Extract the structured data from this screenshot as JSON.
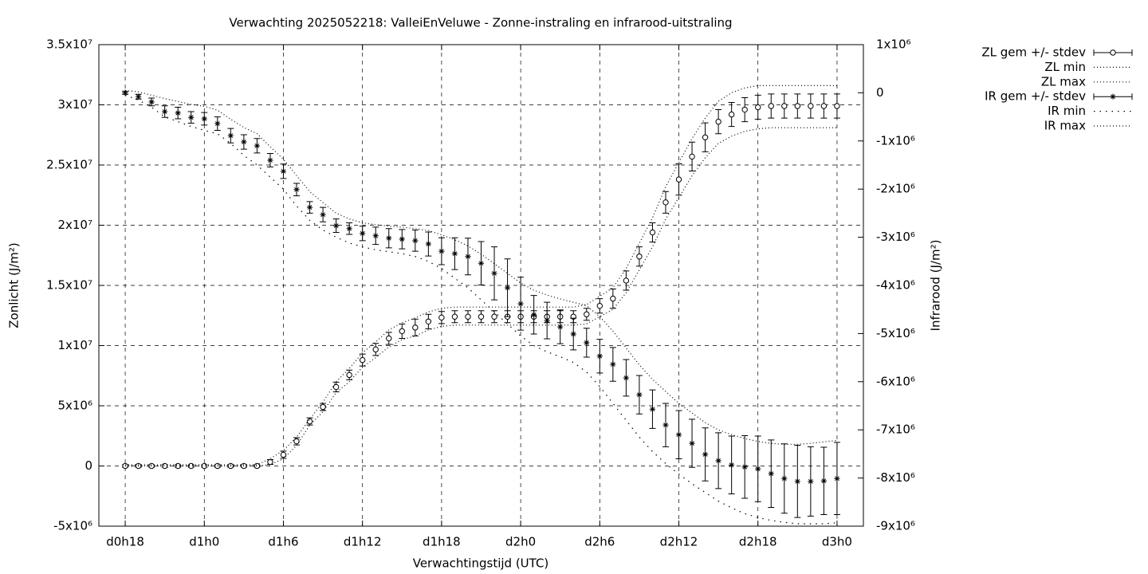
{
  "chart_data": {
    "type": "line",
    "title": "Verwachting 2025052218: ValleiEnVeluwe - Zonne-instraling en infrarood-uitstraling",
    "xlabel": "Verwachtingstijd (UTC)",
    "ylabel": "Zonlicht (J/m²)",
    "y2label": "Infrarood (J/m²)",
    "grid": true,
    "legend": "outside-right",
    "x": [
      18,
      19,
      20,
      21,
      22,
      23,
      24,
      25,
      26,
      27,
      28,
      29,
      30,
      31,
      32,
      33,
      34,
      35,
      36,
      37,
      38,
      39,
      40,
      41,
      42,
      43,
      44,
      45,
      46,
      47,
      48,
      49,
      50,
      51,
      52,
      53,
      54,
      55,
      56,
      57,
      58,
      59,
      60,
      61,
      62,
      63,
      64,
      65,
      66,
      67,
      68,
      69,
      70,
      71,
      72
    ],
    "xlim": [
      16,
      74
    ],
    "xticks": [
      {
        "value": 18,
        "label": "d0h18"
      },
      {
        "value": 24,
        "label": "d1h0"
      },
      {
        "value": 30,
        "label": "d1h6"
      },
      {
        "value": 36,
        "label": "d1h12"
      },
      {
        "value": 42,
        "label": "d1h18"
      },
      {
        "value": 48,
        "label": "d2h0"
      },
      {
        "value": 54,
        "label": "d2h6"
      },
      {
        "value": 60,
        "label": "d2h12"
      },
      {
        "value": 66,
        "label": "d2h18"
      },
      {
        "value": 72,
        "label": "d3h0"
      }
    ],
    "ylim": [
      -5000000.0,
      35000000.0
    ],
    "yticks": [
      {
        "value": -5000000.0,
        "label": "-5x10⁶"
      },
      0,
      {
        "value": 5000000.0,
        "label": "5x10⁶"
      },
      {
        "value": 10000000.0,
        "label": "1x10⁷"
      },
      {
        "value": 15000000.0,
        "label": "1.5x10⁷"
      },
      {
        "value": 20000000.0,
        "label": "2x10⁷"
      },
      {
        "value": 25000000.0,
        "label": "2.5x10⁷"
      },
      {
        "value": 30000000.0,
        "label": "3x10⁷"
      },
      {
        "value": 35000000.0,
        "label": "3.5x10⁷"
      }
    ],
    "y2lim": [
      -9000000.0,
      1000000.0
    ],
    "y2ticks": [
      {
        "value": -9000000.0,
        "label": "-9x10⁶"
      },
      {
        "value": -8000000.0,
        "label": "-8x10⁶"
      },
      {
        "value": -7000000.0,
        "label": "-7x10⁶"
      },
      {
        "value": -6000000.0,
        "label": "-6x10⁶"
      },
      {
        "value": -5000000.0,
        "label": "-5x10⁶"
      },
      {
        "value": -4000000.0,
        "label": "-4x10⁶"
      },
      {
        "value": -3000000.0,
        "label": "-3x10⁶"
      },
      {
        "value": -2000000.0,
        "label": "-2x10⁶"
      },
      {
        "value": -1000000.0,
        "label": "-1x10⁶"
      },
      0,
      {
        "value": 1000000.0,
        "label": "1x10⁶"
      }
    ],
    "series": [
      {
        "name": "ZL gem +/- stdev",
        "color": "#000000",
        "axis": "y",
        "marker": "circle",
        "values": [
          0,
          0,
          0,
          0,
          0,
          0,
          0,
          0,
          0,
          0,
          0,
          330000.0,
          930000.0,
          2050000.0,
          3700000.0,
          4900000.0,
          6560000.0,
          7560000.0,
          8800000.0,
          9680000.0,
          10600000.0,
          11200000.0,
          11500000.0,
          12000000.0,
          12330000.0,
          12400000.0,
          12400000.0,
          12400000.0,
          12400000.0,
          12400000.0,
          12400000.0,
          12400000.0,
          12400000.0,
          12400000.0,
          12400000.0,
          12600000.0,
          13300000.0,
          13900000.0,
          15400000.0,
          17400000.0,
          19400000.0,
          21900000.0,
          23800000.0,
          25700000.0,
          27300000.0,
          28600000.0,
          29200000.0,
          29600000.0,
          29800000.0,
          29900000.0,
          29900000.0,
          29900000.0,
          29900000.0,
          29900000.0,
          29900000.0
        ],
        "errors": [
          100000.0,
          100000.0,
          100000.0,
          100000.0,
          100000.0,
          100000.0,
          100000.0,
          100000.0,
          100000.0,
          100000.0,
          100000.0,
          200000.0,
          300000.0,
          300000.0,
          300000.0,
          300000.0,
          400000.0,
          400000.0,
          500000.0,
          500000.0,
          500000.0,
          600000.0,
          700000.0,
          600000.0,
          500000.0,
          500000.0,
          500000.0,
          500000.0,
          500000.0,
          500000.0,
          500000.0,
          500000.0,
          500000.0,
          500000.0,
          500000.0,
          500000.0,
          600000.0,
          800000.0,
          800000.0,
          800000.0,
          800000.0,
          900000.0,
          1300000.0,
          1200000.0,
          1200000.0,
          1000000.0,
          1000000.0,
          1000000.0,
          1000000.0,
          1000000.0,
          1000000.0,
          1000000.0,
          1000000.0,
          1000000.0,
          1000000.0
        ]
      },
      {
        "name": "ZL min",
        "color": "#000000",
        "axis": "y",
        "line_style": "dotted",
        "values": [
          0,
          0,
          0,
          0,
          0,
          0,
          0,
          0,
          0,
          0,
          0,
          100000.0,
          600000.0,
          1700000.0,
          3400000.0,
          4500000.0,
          6100000.0,
          7000000.0,
          8200000.0,
          9000000.0,
          9900000.0,
          10500000.0,
          10800000.0,
          11300000.0,
          11600000.0,
          11700000.0,
          11700000.0,
          11700000.0,
          11700000.0,
          11700000.0,
          11700000.0,
          11700000.0,
          11700000.0,
          11700000.0,
          11700000.0,
          11800000.0,
          12400000.0,
          13000000.0,
          14400000.0,
          16300000.0,
          18200000.0,
          20500000.0,
          22300000.0,
          24100000.0,
          25600000.0,
          26800000.0,
          27400000.0,
          27800000.0,
          28000000.0,
          28100000.0,
          28100000.0,
          28100000.0,
          28100000.0,
          28100000.0,
          28100000.0
        ]
      },
      {
        "name": "ZL max",
        "color": "#000000",
        "axis": "y",
        "line_style": "dotted",
        "values": [
          100000.0,
          100000.0,
          100000.0,
          100000.0,
          100000.0,
          100000.0,
          100000.0,
          100000.0,
          100000.0,
          100000.0,
          100000.0,
          600000.0,
          1300000.0,
          2400000.0,
          3900000.0,
          5300000.0,
          7000000.0,
          8100000.0,
          9400000.0,
          10300000.0,
          11300000.0,
          11900000.0,
          12300000.0,
          12800000.0,
          13100000.0,
          13200000.0,
          13200000.0,
          13200000.0,
          13200000.0,
          13200000.0,
          13200000.0,
          13200000.0,
          13200000.0,
          13200000.0,
          13200000.0,
          13400000.0,
          14100000.0,
          14800000.0,
          16400000.0,
          18500000.0,
          20600000.0,
          23200000.0,
          25200000.0,
          27200000.0,
          28900000.0,
          30300000.0,
          31000000.0,
          31400000.0,
          31600000.0,
          31600000.0,
          31600000.0,
          31600000.0,
          31600000.0,
          31600000.0,
          31600000.0
        ]
      },
      {
        "name": "IR gem +/- stdev",
        "color": "#000000",
        "axis": "y2",
        "marker": "star",
        "values": [
          0,
          -80000.0,
          -190000.0,
          -390000.0,
          -420000.0,
          -510000.0,
          -540000.0,
          -640000.0,
          -890000.0,
          -1020000.0,
          -1100000.0,
          -1400000.0,
          -1630000.0,
          -2010000.0,
          -2380000.0,
          -2530000.0,
          -2760000.0,
          -2820000.0,
          -2920000.0,
          -2970000.0,
          -3020000.0,
          -3040000.0,
          -3070000.0,
          -3140000.0,
          -3290000.0,
          -3340000.0,
          -3400000.0,
          -3540000.0,
          -3750000.0,
          -4050000.0,
          -4380000.0,
          -4610000.0,
          -4730000.0,
          -4860000.0,
          -5010000.0,
          -5190000.0,
          -5470000.0,
          -5640000.0,
          -5920000.0,
          -6270000.0,
          -6570000.0,
          -6900000.0,
          -7100000.0,
          -7280000.0,
          -7510000.0,
          -7640000.0,
          -7730000.0,
          -7770000.0,
          -7810000.0,
          -7910000.0,
          -8010000.0,
          -8070000.0,
          -8070000.0,
          -8060000.0,
          -8010000.0
        ],
        "errors": [
          30000.0,
          50000.0,
          80000.0,
          120000.0,
          120000.0,
          120000.0,
          130000.0,
          140000.0,
          150000.0,
          150000.0,
          150000.0,
          140000.0,
          150000.0,
          130000.0,
          120000.0,
          150000.0,
          140000.0,
          120000.0,
          150000.0,
          180000.0,
          200000.0,
          200000.0,
          220000.0,
          250000.0,
          280000.0,
          330000.0,
          380000.0,
          450000.0,
          550000.0,
          600000.0,
          550000.0,
          400000.0,
          380000.0,
          350000.0,
          330000.0,
          300000.0,
          350000.0,
          350000.0,
          380000.0,
          400000.0,
          400000.0,
          450000.0,
          500000.0,
          500000.0,
          550000.0,
          580000.0,
          600000.0,
          650000.0,
          680000.0,
          700000.0,
          720000.0,
          750000.0,
          720000.0,
          700000.0,
          750000.0
        ]
      },
      {
        "name": "IR min",
        "color": "#000000",
        "axis": "y2",
        "line_style": "dotted-wide",
        "values": [
          -50000.0,
          -150000.0,
          -300000.0,
          -500000.0,
          -600000.0,
          -700000.0,
          -780000.0,
          -850000.0,
          -1050000.0,
          -1300000.0,
          -1500000.0,
          -1750000.0,
          -2000000.0,
          -2350000.0,
          -2650000.0,
          -2850000.0,
          -3000000.0,
          -3120000.0,
          -3200000.0,
          -3260000.0,
          -3300000.0,
          -3340000.0,
          -3400000.0,
          -3500000.0,
          -3650000.0,
          -3850000.0,
          -4050000.0,
          -4300000.0,
          -4550000.0,
          -4800000.0,
          -5050000.0,
          -5250000.0,
          -5380000.0,
          -5480000.0,
          -5600000.0,
          -5800000.0,
          -6100000.0,
          -6450000.0,
          -6800000.0,
          -7150000.0,
          -7450000.0,
          -7700000.0,
          -7920000.0,
          -8120000.0,
          -8300000.0,
          -8480000.0,
          -8620000.0,
          -8740000.0,
          -8820000.0,
          -8880000.0,
          -8920000.0,
          -8950000.0,
          -8950000.0,
          -8950000.0,
          -8930000.0
        ]
      },
      {
        "name": "IR max",
        "color": "#000000",
        "axis": "y2",
        "line_style": "dotted",
        "values": [
          50000.0,
          20000.0,
          -50000.0,
          -120000.0,
          -180000.0,
          -240000.0,
          -280000.0,
          -360000.0,
          -550000.0,
          -720000.0,
          -850000.0,
          -1120000.0,
          -1380000.0,
          -1720000.0,
          -2050000.0,
          -2280000.0,
          -2500000.0,
          -2620000.0,
          -2700000.0,
          -2740000.0,
          -2770000.0,
          -2790000.0,
          -2820000.0,
          -2860000.0,
          -2950000.0,
          -3050000.0,
          -3180000.0,
          -3350000.0,
          -3550000.0,
          -3750000.0,
          -3950000.0,
          -4100000.0,
          -4200000.0,
          -4280000.0,
          -4350000.0,
          -4420000.0,
          -4650000.0,
          -4950000.0,
          -5300000.0,
          -5650000.0,
          -5950000.0,
          -6200000.0,
          -6450000.0,
          -6650000.0,
          -6850000.0,
          -7000000.0,
          -7100000.0,
          -7180000.0,
          -7240000.0,
          -7280000.0,
          -7300000.0,
          -7300000.0,
          -7280000.0,
          -7250000.0,
          -7220000.0
        ]
      }
    ]
  }
}
